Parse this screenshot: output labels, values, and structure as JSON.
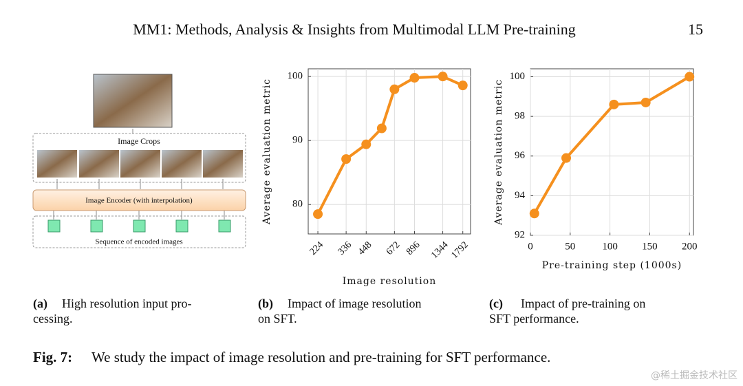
{
  "header": {
    "title": "MM1: Methods, Analysis & Insights from Multimodal LLM Pre-training",
    "page": "15"
  },
  "diagram": {
    "crops_label": "Image Crops",
    "encoder_label": "Image Encoder (with interpolation)",
    "sequence_label": "Sequence of encoded images"
  },
  "panels": [
    {
      "label": "(a)",
      "caption_lines": [
        "High resolution input pro-",
        "cessing."
      ]
    },
    {
      "label": "(b)",
      "caption_lines": [
        "Impact of image resolution",
        "on SFT."
      ]
    },
    {
      "label": "(c)",
      "caption_lines": [
        "Impact of pre-training on",
        "SFT performance."
      ]
    }
  ],
  "chart_data": [
    {
      "type": "line",
      "y_label": "Average evaluation metric",
      "x_label": "Image resolution",
      "x": [
        224,
        336,
        448,
        560,
        672,
        896,
        1344,
        1792
      ],
      "values": [
        78.5,
        87.1,
        89.4,
        91.9,
        98.0,
        99.8,
        100,
        98.6
      ],
      "color": "#f5901e",
      "xscale": "log",
      "xlim": [
        195,
        2003
      ],
      "ylim": [
        75.4,
        101.2
      ],
      "xticks": [
        224,
        336,
        448,
        672,
        896,
        1344,
        1792
      ],
      "yticks": [
        80,
        90,
        100
      ],
      "grid": true
    },
    {
      "type": "line",
      "y_label": "Average evaluation metric",
      "x_label": "Pre-training step (1000s)",
      "x": [
        5,
        45,
        105,
        145,
        200
      ],
      "values": [
        93.1,
        95.9,
        98.6,
        98.7,
        100
      ],
      "color": "#f5901e",
      "xlim": [
        0,
        205
      ],
      "ylim": [
        92,
        100.4
      ],
      "xticks": [
        0,
        50,
        100,
        150,
        200
      ],
      "yticks": [
        92,
        94,
        96,
        98,
        100
      ],
      "grid": true
    }
  ],
  "figure_caption": {
    "label": "Fig. 7:",
    "text": "We study the impact of image resolution and pre-training for SFT performance."
  },
  "watermark": "@稀土掘金技术社区"
}
